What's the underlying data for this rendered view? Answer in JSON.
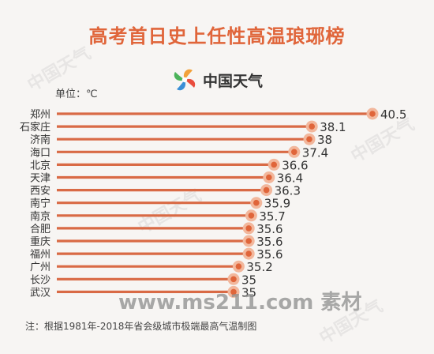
{
  "title": "高考首日史上任性高温琅琊榜",
  "brand": {
    "name": "中国天气"
  },
  "unit_label": "单位：℃",
  "footnote": "注：根据1981年-2018年省会级城市极端最高气温制图",
  "watermark_site": "www.ms211.com 素材",
  "watermark_bg": "中国天气",
  "colors": {
    "accent": "#e0653a",
    "marker_halo": "#f2b79c",
    "bar": "#d96a45"
  },
  "chart_data": {
    "type": "bar",
    "orientation": "horizontal",
    "categories": [
      "郑州",
      "石家庄",
      "济南",
      "海口",
      "北京",
      "天津",
      "西安",
      "南宁",
      "南京",
      "合肥",
      "重庆",
      "福州",
      "广州",
      "长沙",
      "武汉"
    ],
    "values": [
      40.5,
      38.1,
      38,
      37.4,
      36.6,
      36.4,
      36.3,
      35.9,
      35.7,
      35.6,
      35.6,
      35.6,
      35.2,
      35,
      35
    ],
    "value_labels": [
      "40.5",
      "38.1",
      "38",
      "37.4",
      "36.6",
      "36.4",
      "36.3",
      "35.9",
      "35.7",
      "35.6",
      "35.6",
      "35.6",
      "35.2",
      "35",
      "35"
    ],
    "ylabel": "单位：℃",
    "grid": false
  }
}
